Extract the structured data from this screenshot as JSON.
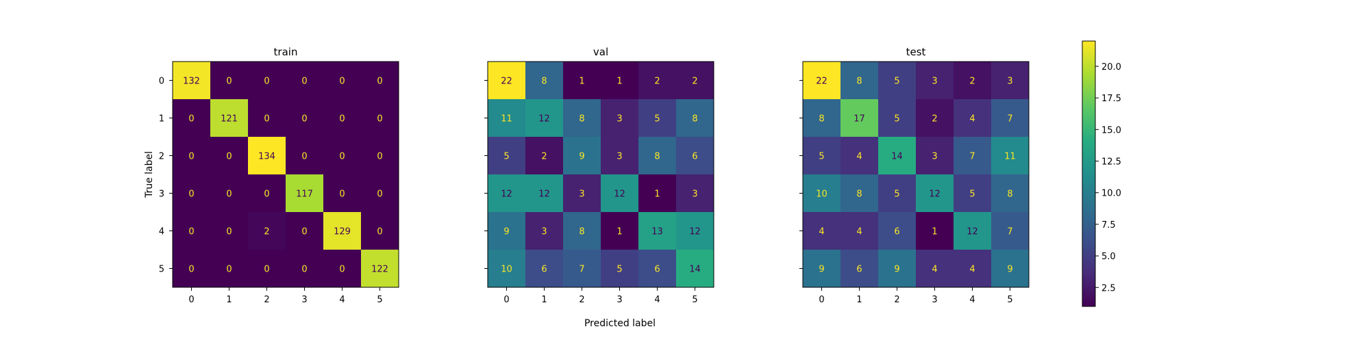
{
  "chart_data": {
    "type": "heatmap",
    "xlabel": "Predicted label",
    "ylabel": "True label",
    "tick_labels": [
      "0",
      "1",
      "2",
      "3",
      "4",
      "5"
    ],
    "panels": [
      {
        "title": "train",
        "matrix": [
          [
            132,
            0,
            0,
            0,
            0,
            0
          ],
          [
            0,
            121,
            0,
            0,
            0,
            0
          ],
          [
            0,
            0,
            134,
            0,
            0,
            0
          ],
          [
            0,
            0,
            0,
            117,
            0,
            0
          ],
          [
            0,
            0,
            2,
            0,
            129,
            0
          ],
          [
            0,
            0,
            0,
            0,
            0,
            122
          ]
        ],
        "color_range": [
          0,
          134
        ]
      },
      {
        "title": "val",
        "matrix": [
          [
            22,
            8,
            1,
            1,
            2,
            2
          ],
          [
            11,
            12,
            8,
            3,
            5,
            8
          ],
          [
            5,
            2,
            9,
            3,
            8,
            6
          ],
          [
            12,
            12,
            3,
            12,
            1,
            3
          ],
          [
            9,
            3,
            8,
            1,
            13,
            12
          ],
          [
            10,
            6,
            7,
            5,
            6,
            14
          ]
        ],
        "color_range": [
          1,
          22
        ]
      },
      {
        "title": "test",
        "matrix": [
          [
            22,
            8,
            5,
            3,
            2,
            3
          ],
          [
            8,
            17,
            5,
            2,
            4,
            7
          ],
          [
            5,
            4,
            14,
            3,
            7,
            11
          ],
          [
            10,
            8,
            5,
            12,
            5,
            8
          ],
          [
            4,
            4,
            6,
            1,
            12,
            7
          ],
          [
            9,
            6,
            9,
            4,
            4,
            9
          ]
        ],
        "color_range": [
          1,
          22
        ]
      }
    ],
    "colorbar": {
      "colormap": "viridis",
      "range": [
        1,
        22
      ],
      "ticks": [
        2.5,
        5.0,
        7.5,
        10.0,
        12.5,
        15.0,
        17.5,
        20.0
      ],
      "tick_labels": [
        "2.5",
        "5.0",
        "7.5",
        "10.0",
        "12.5",
        "15.0",
        "17.5",
        "20.0"
      ]
    }
  },
  "colors": {
    "text_on_dark": "#fde725",
    "text_on_light": "#440154",
    "axis": "#000000",
    "background": "#ffffff"
  }
}
